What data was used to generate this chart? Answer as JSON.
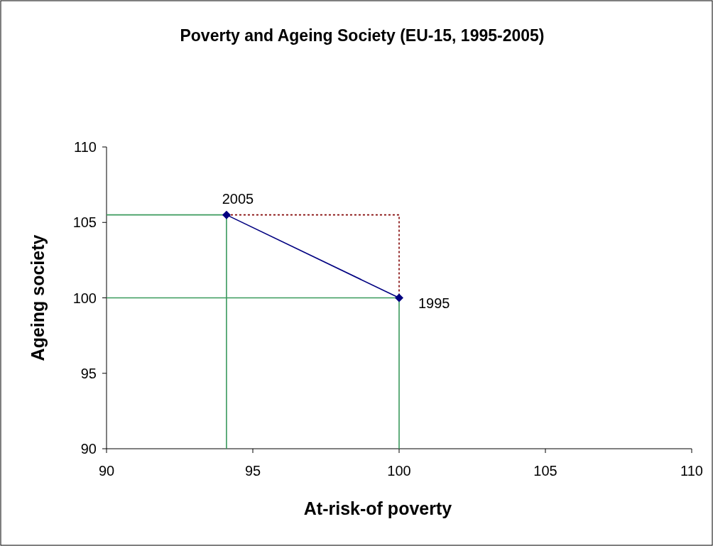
{
  "chart_data": {
    "type": "line",
    "title": "Poverty and Ageing Society (EU-15, 1995-2005)",
    "xlabel": "At-risk-of poverty",
    "ylabel": "Ageing society",
    "xlim": [
      90,
      110
    ],
    "xticks": [
      90,
      95,
      100,
      105,
      110
    ],
    "ylim": [
      90,
      110
    ],
    "yticks": [
      90,
      95,
      100,
      105,
      110
    ],
    "grid": false,
    "series": [
      {
        "x": [
          90,
          94.1
        ],
        "values": [
          105.5,
          105.5
        ],
        "color": "#3a9a5c",
        "marker": "none",
        "line_style": "solid"
      },
      {
        "x": [
          94.1,
          94.1
        ],
        "values": [
          90,
          105.5
        ],
        "color": "#3a9a5c",
        "marker": "none",
        "line_style": "solid"
      },
      {
        "x": [
          90,
          100
        ],
        "values": [
          100,
          100
        ],
        "color": "#3a9a5c",
        "marker": "none",
        "line_style": "solid"
      },
      {
        "x": [
          100,
          100
        ],
        "values": [
          90,
          100
        ],
        "color": "#3a9a5c",
        "marker": "none",
        "line_style": "solid"
      },
      {
        "x": [
          94.1,
          100,
          100
        ],
        "values": [
          105.5,
          105.5,
          100
        ],
        "color": "#800000",
        "marker": "none",
        "line_style": "dotted"
      },
      {
        "x": [
          100,
          94.1
        ],
        "values": [
          100,
          105.5
        ],
        "color": "#000080",
        "marker": "diamond",
        "line_style": "solid"
      }
    ],
    "annotations": [
      {
        "text": "2005",
        "x": 94.1,
        "y": 105.5
      },
      {
        "text": "1995",
        "x": 100,
        "y": 100
      }
    ]
  }
}
